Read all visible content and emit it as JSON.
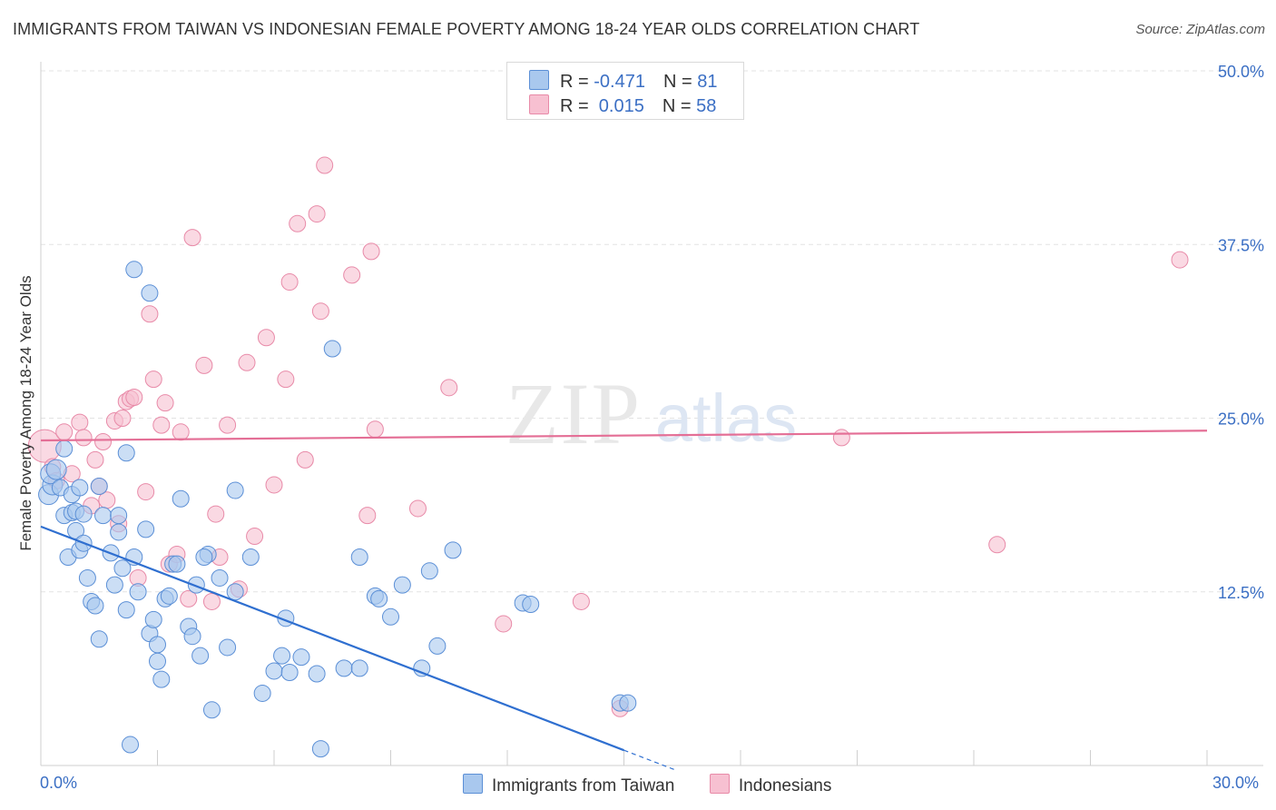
{
  "title": "IMMIGRANTS FROM TAIWAN VS INDONESIAN FEMALE POVERTY AMONG 18-24 YEAR OLDS CORRELATION CHART",
  "source": "Source: ZipAtlas.com",
  "watermark": {
    "zip": "ZIP",
    "atlas": "atlas"
  },
  "legend": {
    "rows": [
      {
        "r_label": "R = ",
        "r_value": "-0.471",
        "n_label": "N = ",
        "n_value": "81"
      },
      {
        "r_label": "R = ",
        "r_value": " 0.015",
        "n_label": "N = ",
        "n_value": "58"
      }
    ]
  },
  "bottom_legend": {
    "series1": "Immigrants from Taiwan",
    "series2": "Indonesians"
  },
  "x_axis": {
    "min_label": "0.0%",
    "max_label": "30.0%"
  },
  "colors": {
    "taiwan_fill": "#a9c8ee",
    "taiwan_stroke": "#5b8fd6",
    "taiwan_line": "#2f6fd0",
    "indo_fill": "#f7c0d1",
    "indo_stroke": "#e88aa8",
    "indo_line": "#e46f96",
    "tick_label": "#3b6fc4",
    "grid": "#e3e3e3"
  },
  "chart_data": {
    "type": "scatter",
    "title": "IMMIGRANTS FROM TAIWAN VS INDONESIAN FEMALE POVERTY AMONG 18-24 YEAR OLDS CORRELATION CHART",
    "xlabel": "",
    "ylabel": "Female Poverty Among 18-24 Year Olds",
    "xlim": [
      0,
      30
    ],
    "ylim": [
      0,
      50
    ],
    "y_ticks": [
      {
        "v": 12.5,
        "label": "12.5%"
      },
      {
        "v": 25,
        "label": "25.0%"
      },
      {
        "v": 37.5,
        "label": "37.5%"
      },
      {
        "v": 50,
        "label": "50.0%"
      }
    ],
    "series": [
      {
        "name": "Immigrants from Taiwan",
        "R": -0.471,
        "N": 81,
        "trend": {
          "x0": 0,
          "y0": 17.2,
          "x1": 15,
          "y1": 1.1,
          "dash_to_x": 16.3
        },
        "points": [
          [
            0.2,
            19.5
          ],
          [
            0.3,
            20.2
          ],
          [
            0.25,
            21.0
          ],
          [
            0.4,
            21.3
          ],
          [
            0.5,
            20.0
          ],
          [
            0.6,
            18.0
          ],
          [
            0.7,
            15.0
          ],
          [
            0.8,
            18.2
          ],
          [
            0.6,
            22.8
          ],
          [
            0.9,
            18.3
          ],
          [
            0.8,
            19.5
          ],
          [
            1.0,
            20.0
          ],
          [
            1.1,
            18.1
          ],
          [
            0.9,
            16.9
          ],
          [
            1.0,
            15.5
          ],
          [
            1.2,
            13.5
          ],
          [
            1.3,
            11.8
          ],
          [
            1.4,
            11.5
          ],
          [
            1.5,
            9.1
          ],
          [
            1.6,
            18.0
          ],
          [
            1.8,
            15.3
          ],
          [
            1.9,
            13.0
          ],
          [
            2.0,
            18.0
          ],
          [
            2.1,
            14.2
          ],
          [
            2.2,
            22.5
          ],
          [
            2.4,
            15.0
          ],
          [
            2.5,
            12.5
          ],
          [
            2.7,
            17.0
          ],
          [
            2.8,
            9.5
          ],
          [
            2.9,
            10.5
          ],
          [
            3.0,
            8.7
          ],
          [
            3.1,
            6.2
          ],
          [
            3.2,
            12.0
          ],
          [
            3.4,
            14.5
          ],
          [
            3.5,
            14.5
          ],
          [
            3.6,
            19.2
          ],
          [
            3.8,
            10.0
          ],
          [
            3.9,
            9.3
          ],
          [
            4.1,
            7.9
          ],
          [
            4.3,
            15.2
          ],
          [
            4.4,
            4.0
          ],
          [
            4.6,
            13.5
          ],
          [
            4.8,
            8.5
          ],
          [
            5.0,
            19.8
          ],
          [
            5.4,
            15.0
          ],
          [
            5.7,
            5.2
          ],
          [
            6.0,
            6.8
          ],
          [
            6.4,
            6.7
          ],
          [
            6.7,
            7.8
          ],
          [
            7.1,
            6.6
          ],
          [
            7.5,
            30.0
          ],
          [
            7.8,
            7.0
          ],
          [
            8.2,
            7.0
          ],
          [
            8.6,
            12.2
          ],
          [
            8.7,
            12.0
          ],
          [
            9.0,
            10.7
          ],
          [
            9.8,
            7.0
          ],
          [
            10.0,
            14.0
          ],
          [
            10.2,
            8.6
          ],
          [
            10.6,
            15.5
          ],
          [
            12.4,
            11.7
          ],
          [
            12.6,
            11.6
          ],
          [
            14.9,
            4.5
          ],
          [
            15.1,
            4.5
          ],
          [
            2.4,
            35.7
          ],
          [
            2.8,
            34.0
          ],
          [
            1.1,
            16.0
          ],
          [
            1.5,
            20.1
          ],
          [
            2.0,
            16.8
          ],
          [
            2.2,
            11.2
          ],
          [
            3.0,
            7.5
          ],
          [
            3.3,
            12.2
          ],
          [
            4.0,
            13.0
          ],
          [
            4.2,
            15.0
          ],
          [
            6.3,
            10.6
          ],
          [
            6.2,
            7.9
          ],
          [
            8.2,
            15.0
          ],
          [
            7.2,
            1.2
          ],
          [
            5.0,
            12.5
          ],
          [
            9.3,
            13.0
          ],
          [
            2.3,
            1.5
          ]
        ]
      },
      {
        "name": "Indonesians",
        "R": 0.015,
        "N": 58,
        "trend": {
          "x0": 0,
          "y0": 23.4,
          "x1": 30,
          "y1": 24.1
        },
        "points": [
          [
            0.1,
            23.0
          ],
          [
            0.3,
            21.5
          ],
          [
            0.4,
            20.5
          ],
          [
            0.6,
            24.0
          ],
          [
            0.8,
            21.0
          ],
          [
            1.0,
            24.7
          ],
          [
            1.1,
            23.6
          ],
          [
            1.3,
            18.7
          ],
          [
            1.4,
            22.0
          ],
          [
            1.5,
            20.1
          ],
          [
            1.6,
            23.3
          ],
          [
            1.7,
            19.1
          ],
          [
            1.9,
            24.8
          ],
          [
            2.0,
            17.4
          ],
          [
            2.1,
            25.0
          ],
          [
            2.2,
            26.2
          ],
          [
            2.3,
            26.4
          ],
          [
            2.4,
            26.5
          ],
          [
            2.5,
            13.5
          ],
          [
            2.7,
            19.7
          ],
          [
            2.8,
            32.5
          ],
          [
            2.9,
            27.8
          ],
          [
            3.1,
            24.5
          ],
          [
            3.2,
            26.1
          ],
          [
            3.3,
            14.5
          ],
          [
            3.5,
            15.2
          ],
          [
            3.6,
            24.0
          ],
          [
            3.8,
            12.0
          ],
          [
            3.9,
            38.0
          ],
          [
            4.2,
            28.8
          ],
          [
            4.4,
            11.8
          ],
          [
            4.5,
            18.1
          ],
          [
            4.6,
            15.0
          ],
          [
            4.8,
            24.5
          ],
          [
            5.1,
            12.7
          ],
          [
            5.3,
            29.0
          ],
          [
            5.5,
            16.5
          ],
          [
            5.8,
            30.8
          ],
          [
            6.0,
            20.2
          ],
          [
            6.3,
            27.8
          ],
          [
            6.4,
            34.8
          ],
          [
            6.6,
            39.0
          ],
          [
            6.8,
            22.0
          ],
          [
            7.1,
            39.7
          ],
          [
            7.2,
            32.7
          ],
          [
            7.3,
            43.2
          ],
          [
            8.0,
            35.3
          ],
          [
            8.4,
            18.0
          ],
          [
            8.5,
            37.0
          ],
          [
            8.6,
            24.2
          ],
          [
            9.7,
            18.5
          ],
          [
            10.5,
            27.2
          ],
          [
            11.9,
            10.2
          ],
          [
            13.9,
            11.8
          ],
          [
            14.9,
            4.1
          ],
          [
            20.6,
            23.6
          ],
          [
            24.6,
            15.9
          ],
          [
            29.3,
            36.4
          ]
        ]
      }
    ]
  }
}
